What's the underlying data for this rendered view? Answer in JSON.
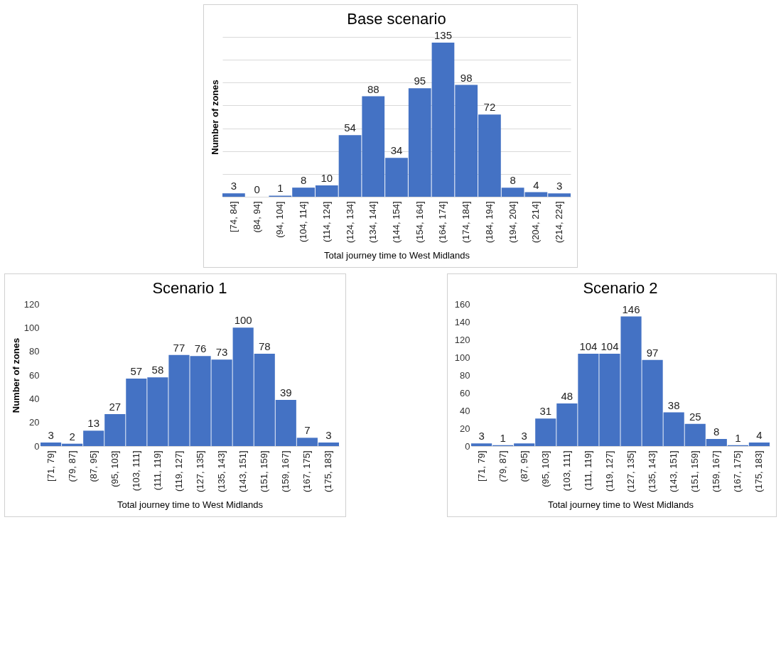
{
  "chart_data": [
    {
      "type": "bar",
      "title": "Base scenario",
      "xlabel": "Total journey time to West Midlands",
      "ylabel": "Number of zones",
      "categories": [
        "[74, 84]",
        "(84, 94]",
        "(94, 104]",
        "(104, 114]",
        "(114, 124]",
        "(124, 134]",
        "(134, 144]",
        "(144, 154]",
        "(154, 164]",
        "(164, 174]",
        "(174, 184]",
        "(184, 194]",
        "(194, 204]",
        "(204, 214]",
        "(214, 224]"
      ],
      "values": [
        3,
        0,
        1,
        8,
        10,
        54,
        88,
        34,
        95,
        135,
        98,
        72,
        8,
        4,
        3
      ],
      "color": "#4472c4",
      "grid": "y",
      "tick_labels": "x",
      "data_labels": true
    },
    {
      "type": "bar",
      "title": "Scenario 1",
      "xlabel": "Total journey time to West Midlands",
      "ylabel": "Number of zones",
      "categories": [
        "[71, 79]",
        "(79, 87]",
        "(87, 95]",
        "(95, 103]",
        "(103, 111]",
        "(111, 119]",
        "(119, 127]",
        "(127, 135]",
        "(135, 143]",
        "(143, 151]",
        "(151, 159]",
        "(159, 167]",
        "(167, 175]",
        "(175, 183]"
      ],
      "values": [
        3,
        2,
        13,
        27,
        57,
        58,
        77,
        76,
        73,
        100,
        78,
        39,
        7,
        3
      ],
      "color": "#4472c4",
      "ylim": [
        0,
        120
      ],
      "yticks": [
        0,
        20,
        40,
        60,
        80,
        100,
        120
      ],
      "data_labels": true
    },
    {
      "type": "bar",
      "title": "Scenario 2",
      "xlabel": "Total journey time to West Midlands",
      "categories": [
        "[71, 79]",
        "(79, 87]",
        "(87, 95]",
        "(95, 103]",
        "(103, 111]",
        "(111, 119]",
        "(119, 127]",
        "(127, 135]",
        "(135, 143]",
        "(143, 151]",
        "(151, 159]",
        "(159, 167]",
        "(167, 175]",
        "(175, 183]"
      ],
      "values": [
        3,
        1,
        3,
        31,
        48,
        104,
        104,
        146,
        97,
        38,
        25,
        8,
        1,
        4
      ],
      "color": "#4472c4",
      "ylim": [
        0,
        160
      ],
      "yticks": [
        0,
        20,
        40,
        60,
        80,
        100,
        120,
        140,
        160
      ],
      "data_labels": true
    }
  ]
}
